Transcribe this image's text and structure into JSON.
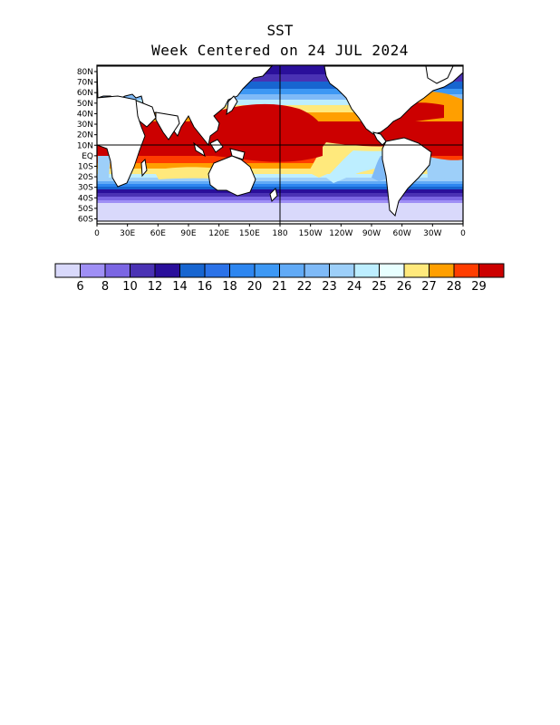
{
  "title": "SST",
  "subtitle": "Week Centered on 24 JUL 2024",
  "map": {
    "projection": "equirectangular",
    "lon_labels": [
      "0",
      "30E",
      "60E",
      "90E",
      "120E",
      "150E",
      "180",
      "150W",
      "120W",
      "90W",
      "60W",
      "30W",
      "0"
    ],
    "lat_labels": [
      "80N",
      "70N",
      "60N",
      "50N",
      "40N",
      "30N",
      "20N",
      "10N",
      "EQ",
      "10S",
      "20S",
      "30S",
      "40S",
      "50S",
      "60S"
    ],
    "equator_line": true,
    "dateline_line": true
  },
  "colorbar": {
    "colors": [
      "#d9d9fb",
      "#9f8ff5",
      "#7b66e3",
      "#4a32b4",
      "#2a0f9b",
      "#1765d0",
      "#2b72e8",
      "#2d86f0",
      "#3d98f4",
      "#61aaf6",
      "#7fbaf7",
      "#9dcff9",
      "#bdeeff",
      "#e8ffff",
      "#ffe97c",
      "#ff9f00",
      "#ff3d00",
      "#cc0000"
    ],
    "labels": [
      "6",
      "8",
      "10",
      "12",
      "14",
      "16",
      "18",
      "20",
      "21",
      "22",
      "23",
      "24",
      "25",
      "26",
      "27",
      "28",
      "29"
    ]
  }
}
